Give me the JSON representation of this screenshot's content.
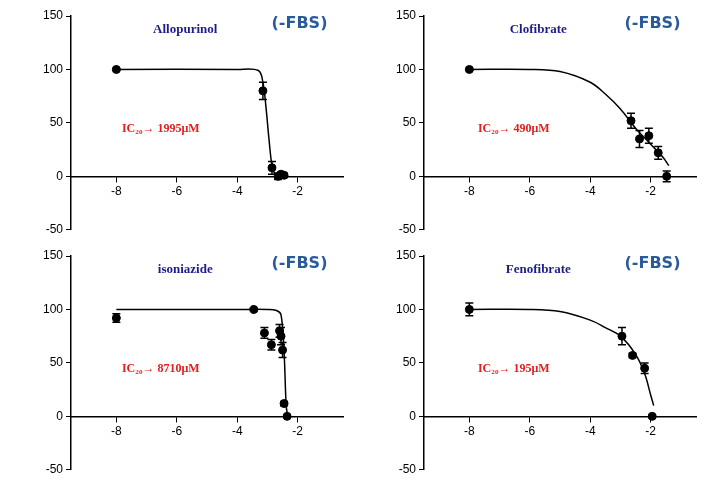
{
  "chart_data": [
    {
      "type": "scatter",
      "title": "Allopurinol",
      "subtitle": "(-FBS)",
      "annotation": "IC₂₀→ 1995μM",
      "color": "#000000",
      "marker": "circle",
      "grid": false,
      "x": [
        -8,
        -3.15,
        -2.85,
        -2.65,
        -2.55,
        -2.45
      ],
      "values": [
        100,
        80,
        8,
        0,
        2,
        1
      ],
      "errors": [
        1,
        8,
        6,
        3,
        2,
        2
      ],
      "fit": {
        "type": "line",
        "x": [
          -8,
          -4,
          -3.3,
          -3.15,
          -3.05,
          -2.95,
          -2.85,
          -2.75,
          -2.6,
          -2.4
        ],
        "values": [
          100,
          100,
          99,
          88,
          65,
          35,
          10,
          2,
          0,
          0
        ]
      },
      "xlim": [
        -9.5,
        -0.5
      ],
      "xticks": [
        -8,
        -6,
        -4,
        -2
      ],
      "ylim": [
        -50,
        150
      ],
      "yticks": [
        -50,
        0,
        50,
        100,
        150
      ]
    },
    {
      "type": "scatter",
      "title": "Clofibrate",
      "subtitle": "(-FBS)",
      "annotation": "IC₂₀→ 490μM",
      "color": "#000000",
      "marker": "circle",
      "grid": false,
      "x": [
        -8,
        -2.65,
        -2.37,
        -2.06,
        -1.75,
        -1.47
      ],
      "values": [
        100,
        52,
        35,
        38,
        22,
        0
      ],
      "errors": [
        1,
        7,
        8,
        7,
        6,
        5
      ],
      "fit": {
        "type": "line",
        "x": [
          -8,
          -6,
          -5,
          -4,
          -3.5,
          -3,
          -2.5,
          -2,
          -1.6,
          -1.4
        ],
        "values": [
          100,
          100,
          98,
          88,
          77,
          63,
          45,
          30,
          18,
          10
        ]
      },
      "xlim": [
        -9.5,
        -0.5
      ],
      "xticks": [
        -8,
        -6,
        -4,
        -2
      ],
      "ylim": [
        -50,
        150
      ],
      "yticks": [
        -50,
        0,
        50,
        100,
        150
      ]
    },
    {
      "type": "scatter",
      "title": "isoniazide",
      "subtitle": "(-FBS)",
      "annotation": "IC₂₀→ 8710μM",
      "color": "#000000",
      "marker": "circle",
      "grid": false,
      "x": [
        -8,
        -3.45,
        -3.1,
        -2.87,
        -2.6,
        -2.55,
        -2.5,
        -2.45,
        -2.35
      ],
      "values": [
        92,
        100,
        78,
        67,
        80,
        75,
        62,
        12,
        0
      ],
      "errors": [
        4,
        1,
        5,
        5,
        6,
        8,
        7,
        2,
        1
      ],
      "fit": {
        "type": "line",
        "x": [
          -8,
          -4,
          -3,
          -2.7,
          -2.55,
          -2.45,
          -2.38,
          -2.33
        ],
        "values": [
          100,
          100,
          100,
          99,
          95,
          60,
          10,
          0
        ]
      },
      "xlim": [
        -9.5,
        -0.5
      ],
      "xticks": [
        -8,
        -6,
        -4,
        -2
      ],
      "ylim": [
        -50,
        150
      ],
      "yticks": [
        -50,
        0,
        50,
        100,
        150
      ]
    },
    {
      "type": "scatter",
      "title": "Fenofibrate",
      "subtitle": "(-FBS)",
      "annotation": "IC₂₀→ 195μM",
      "color": "#000000",
      "marker": "circle",
      "grid": false,
      "x": [
        -8,
        -2.95,
        -2.6,
        -2.2,
        -1.95
      ],
      "values": [
        100,
        75,
        57,
        45,
        0
      ],
      "errors": [
        6,
        8,
        2,
        5,
        1
      ],
      "fit": {
        "type": "line",
        "x": [
          -8,
          -6,
          -5,
          -4,
          -3.5,
          -3,
          -2.5,
          -2.2,
          -2,
          -1.9
        ],
        "values": [
          100,
          100,
          98,
          90,
          83,
          75,
          58,
          40,
          20,
          10
        ]
      },
      "xlim": [
        -9.5,
        -0.5
      ],
      "xticks": [
        -8,
        -6,
        -4,
        -2
      ],
      "ylim": [
        -50,
        150
      ],
      "yticks": [
        -50,
        0,
        50,
        100,
        150
      ]
    }
  ]
}
